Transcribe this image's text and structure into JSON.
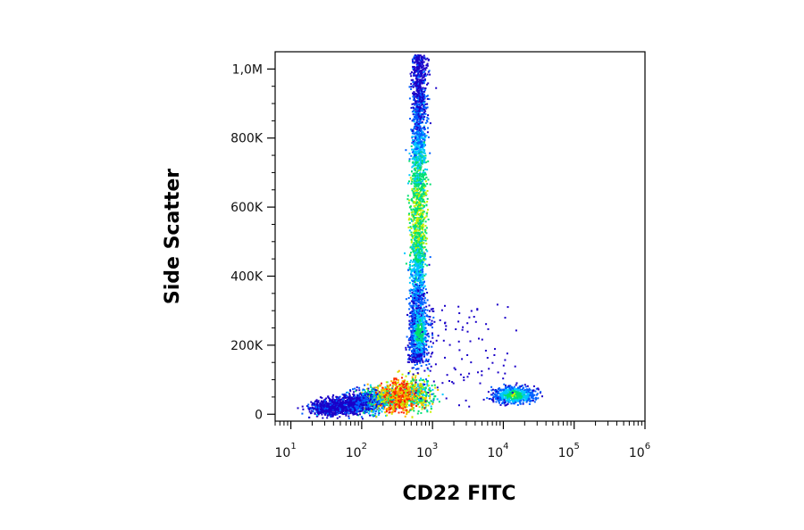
{
  "chart_data": {
    "type": "scatter",
    "subtype": "flow-cytometry-density-dot-plot",
    "title": "",
    "xlabel": "CD22 FITC",
    "ylabel": "Side Scatter",
    "x_scale": "log",
    "xlim": [
      6,
      1000000
    ],
    "ylim": [
      -20000,
      1050000
    ],
    "x_ticks": [
      {
        "value": 10,
        "base": "10",
        "exp": "1"
      },
      {
        "value": 100,
        "base": "10",
        "exp": "2"
      },
      {
        "value": 1000,
        "base": "10",
        "exp": "3"
      },
      {
        "value": 10000,
        "base": "10",
        "exp": "4"
      },
      {
        "value": 100000,
        "base": "10",
        "exp": "5"
      },
      {
        "value": 1000000,
        "base": "10",
        "exp": "6"
      }
    ],
    "y_ticks": [
      {
        "value": 0,
        "label": "0"
      },
      {
        "value": 200000,
        "label": "200K"
      },
      {
        "value": 400000,
        "label": "400K"
      },
      {
        "value": 600000,
        "label": "600K"
      },
      {
        "value": 800000,
        "label": "800K"
      },
      {
        "value": 1000000,
        "label": "1,0M"
      }
    ],
    "grid": false,
    "legend": "none",
    "color_scale": [
      "#1a00c8",
      "#0060ff",
      "#00c8ff",
      "#00e070",
      "#c8f000",
      "#ffb000",
      "#ff2000"
    ],
    "populations": [
      {
        "label": "CD22-negative cells, low side scatter",
        "x_center": 250,
        "y_center": 45000,
        "x_spread": "20 to 1000",
        "y_spread": "0 to 120000",
        "density": "highest"
      },
      {
        "label": "CD22-negative cells, high side scatter",
        "x_center": 700,
        "y_center": 560000,
        "x_spread": "450 to 1100",
        "y_spread": "200000 to 1040000",
        "density": "medium"
      },
      {
        "label": "CD22-negative cells, intermediate side scatter",
        "x_center": 750,
        "y_center": 240000,
        "x_spread": "500 to 1100",
        "y_spread": "150000 to 330000",
        "density": "low"
      },
      {
        "label": "CD22-positive cells",
        "x_center": 15000,
        "y_center": 55000,
        "x_spread": "8000 to 30000",
        "y_spread": "30000 to 80000",
        "density": "medium"
      }
    ]
  }
}
